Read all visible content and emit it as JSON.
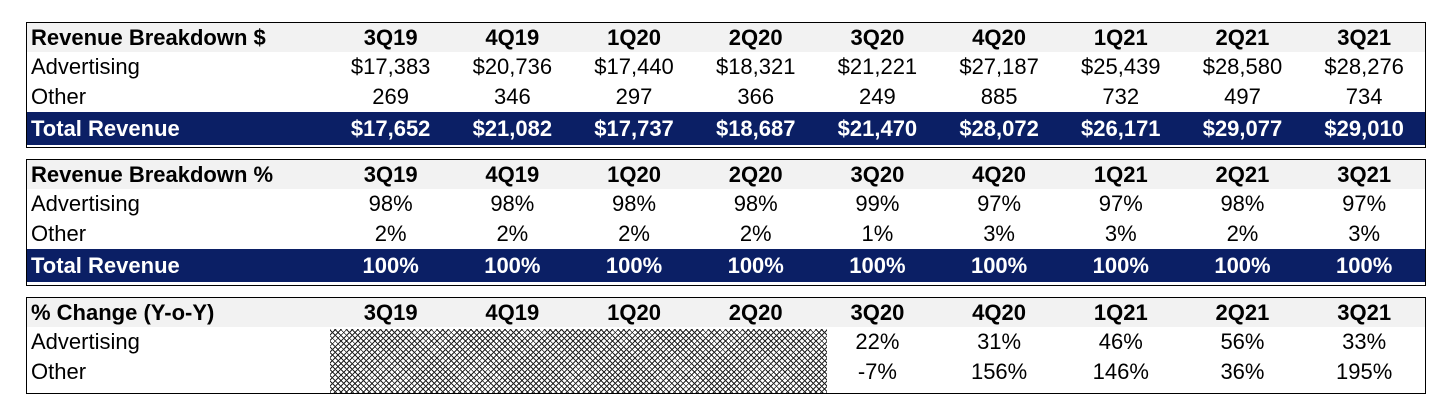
{
  "quarters": [
    "3Q19",
    "4Q19",
    "1Q20",
    "2Q20",
    "3Q20",
    "4Q20",
    "1Q21",
    "2Q21",
    "3Q21"
  ],
  "table_dollars": {
    "title": "Revenue Breakdown $",
    "rows": [
      {
        "label": "Advertising",
        "values": [
          "$17,383",
          "$20,736",
          "$17,440",
          "$18,321",
          "$21,221",
          "$27,187",
          "$25,439",
          "$28,580",
          "$28,276"
        ]
      },
      {
        "label": "Other",
        "values": [
          "269",
          "346",
          "297",
          "366",
          "249",
          "885",
          "732",
          "497",
          "734"
        ]
      }
    ],
    "total": {
      "label": "Total Revenue",
      "values": [
        "$17,652",
        "$21,082",
        "$17,737",
        "$18,687",
        "$21,470",
        "$28,072",
        "$26,171",
        "$29,077",
        "$29,010"
      ]
    }
  },
  "table_percent": {
    "title": "Revenue Breakdown %",
    "rows": [
      {
        "label": "Advertising",
        "values": [
          "98%",
          "98%",
          "98%",
          "98%",
          "99%",
          "97%",
          "97%",
          "98%",
          "97%"
        ]
      },
      {
        "label": "Other",
        "values": [
          "2%",
          "2%",
          "2%",
          "2%",
          "1%",
          "3%",
          "3%",
          "2%",
          "3%"
        ]
      }
    ],
    "total": {
      "label": "Total Revenue",
      "values": [
        "100%",
        "100%",
        "100%",
        "100%",
        "100%",
        "100%",
        "100%",
        "100%",
        "100%"
      ]
    }
  },
  "table_change": {
    "title": "% Change (Y-o-Y)",
    "rows": [
      {
        "label": "Advertising",
        "values": [
          "",
          "",
          "",
          "",
          "22%",
          "31%",
          "46%",
          "56%",
          "33%"
        ]
      },
      {
        "label": "Other",
        "values": [
          "",
          "",
          "",
          "",
          "-7%",
          "156%",
          "146%",
          "36%",
          "195%"
        ]
      }
    ]
  }
}
